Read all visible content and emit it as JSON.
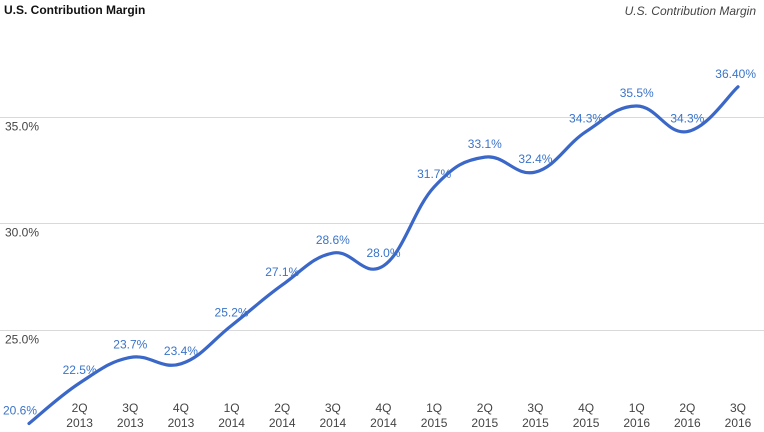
{
  "title": "U.S. Contribution Margin",
  "subtitle": "U.S. Contribution Margin",
  "chart_data": {
    "type": "line",
    "title": "U.S. Contribution Margin",
    "categories": [
      [
        "",
        ""
      ],
      [
        "2Q",
        "2013"
      ],
      [
        "3Q",
        "2013"
      ],
      [
        "4Q",
        "2013"
      ],
      [
        "1Q",
        "2014"
      ],
      [
        "2Q",
        "2014"
      ],
      [
        "3Q",
        "2014"
      ],
      [
        "4Q",
        "2014"
      ],
      [
        "1Q",
        "2015"
      ],
      [
        "2Q",
        "2015"
      ],
      [
        "3Q",
        "2015"
      ],
      [
        "4Q",
        "2015"
      ],
      [
        "1Q",
        "2016"
      ],
      [
        "2Q",
        "2016"
      ],
      [
        "3Q",
        "2016"
      ]
    ],
    "series": [
      {
        "values": [
          20.6,
          22.5,
          23.7,
          23.4,
          25.2,
          27.1,
          28.6,
          28.0,
          31.7,
          33.1,
          32.4,
          34.3,
          35.5,
          34.3,
          36.4
        ],
        "labels": [
          "20.6%",
          "22.5%",
          "23.7%",
          "23.4%",
          "25.2%",
          "27.1%",
          "28.6%",
          "28.0%",
          "31.7%",
          "33.1%",
          "32.4%",
          "34.3%",
          "35.5%",
          "34.3%",
          "36.40%"
        ],
        "color": "#3a67c8"
      }
    ],
    "y_ticks": [
      {
        "value": 25,
        "label": "25.0%"
      },
      {
        "value": 30,
        "label": "30.0%"
      },
      {
        "value": 35,
        "label": "35.0%"
      }
    ],
    "ylim": [
      20.2,
      37.8
    ],
    "grid": true,
    "label_color": "#3a74c9"
  }
}
